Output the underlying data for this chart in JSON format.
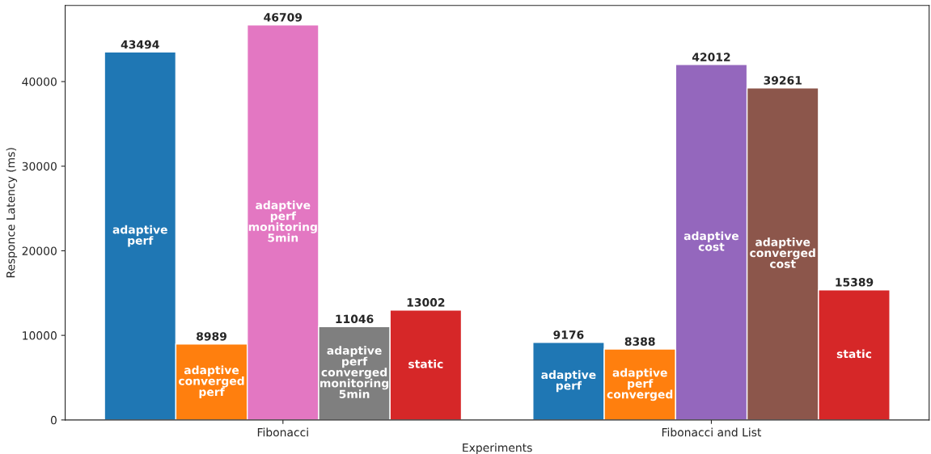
{
  "chart_data": {
    "type": "bar",
    "xlabel": "Experiments",
    "ylabel": "Responce Latency (ms)",
    "categories": [
      "Fibonacci",
      "Fibonacci and List"
    ],
    "series": [
      {
        "name": "adaptive perf",
        "color": "#1f77b4",
        "values": [
          43494,
          9176
        ]
      },
      {
        "name": "adaptive converged perf",
        "color": "#ff7f0e",
        "values": [
          8989,
          null
        ]
      },
      {
        "name": "adaptive perf monitoring 5min",
        "color": "#e377c2",
        "values": [
          46709,
          null
        ]
      },
      {
        "name": "adaptive perf converged monitoring 5min",
        "color": "#7f7f7f",
        "values": [
          11046,
          null
        ]
      },
      {
        "name": "adaptive perf converged",
        "color": "#ff7f0e",
        "values": [
          null,
          8388
        ]
      },
      {
        "name": "adaptive cost",
        "color": "#9467bd",
        "values": [
          null,
          42012
        ]
      },
      {
        "name": "adaptive converged cost",
        "color": "#8c564b",
        "values": [
          null,
          39261
        ]
      },
      {
        "name": "static",
        "color": "#d62728",
        "values": [
          13002,
          15389
        ]
      }
    ],
    "ylim": [
      0,
      49000
    ],
    "yticks": [
      0,
      10000,
      20000,
      30000,
      40000
    ],
    "data_labels": true,
    "grid": false,
    "legend": false
  }
}
